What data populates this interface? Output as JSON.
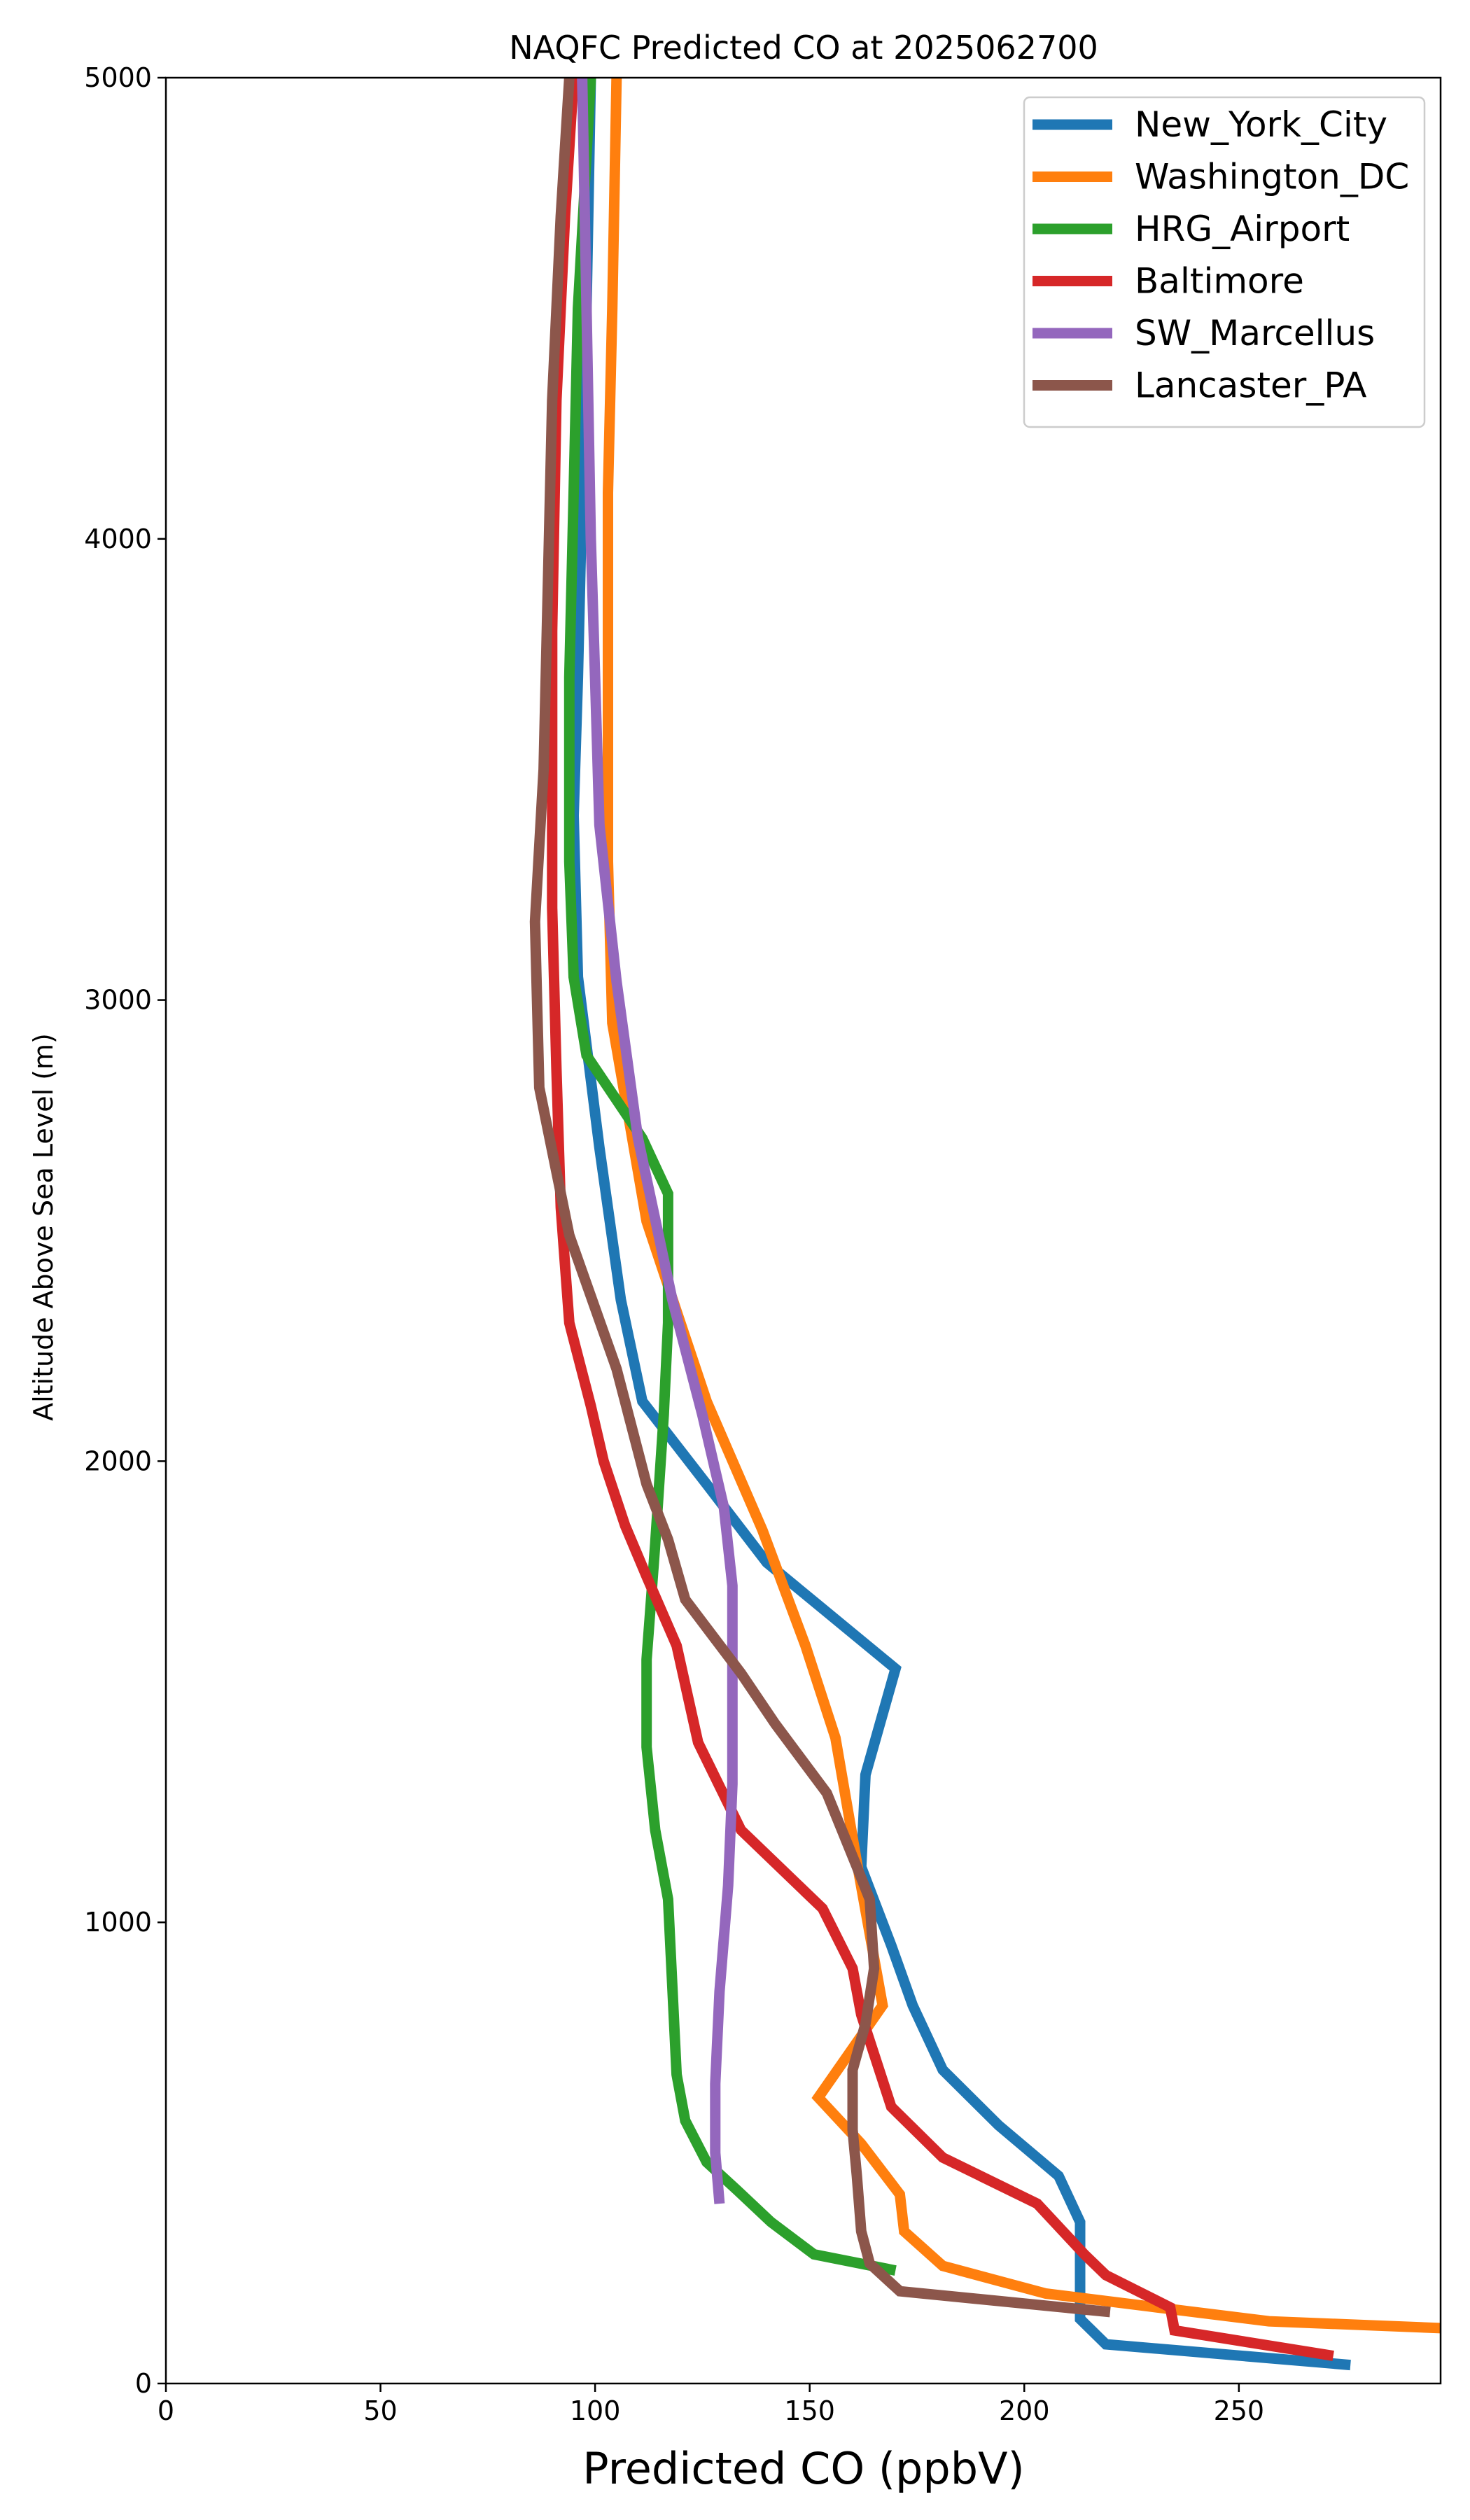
{
  "chart_data": {
    "type": "line",
    "title": "NAQFC Predicted CO at 2025062700",
    "xlabel": "Predicted CO (ppbV)",
    "ylabel": "Altitude Above Sea Level (m)",
    "xlim": [
      0,
      297
    ],
    "ylim": [
      0,
      5000
    ],
    "x_ticks": [
      "0",
      "50",
      "100",
      "150",
      "200",
      "250"
    ],
    "y_ticks": [
      "0",
      "1000",
      "2000",
      "3000",
      "4000",
      "5000"
    ],
    "legend_position": "top-right",
    "grid": false,
    "series": [
      {
        "name": "New_York_City",
        "color": "#1f77b4",
        "points": [
          [
            276,
            40
          ],
          [
            219,
            85
          ],
          [
            213,
            140
          ],
          [
            213,
            250
          ],
          [
            213,
            350
          ],
          [
            208,
            450
          ],
          [
            194,
            560
          ],
          [
            181,
            680
          ],
          [
            174,
            820
          ],
          [
            169,
            950
          ],
          [
            162,
            1120
          ],
          [
            163,
            1320
          ],
          [
            170,
            1550
          ],
          [
            140,
            1780
          ],
          [
            126,
            1950
          ],
          [
            111,
            2130
          ],
          [
            106,
            2350
          ],
          [
            101,
            2680
          ],
          [
            96,
            3050
          ],
          [
            95,
            3400
          ],
          [
            96,
            3700
          ],
          [
            97,
            4100
          ],
          [
            98,
            4500
          ],
          [
            99,
            5000
          ]
        ]
      },
      {
        "name": "Washington_DC",
        "color": "#ff7f0e",
        "points": [
          [
            297,
            120
          ],
          [
            257,
            135
          ],
          [
            205,
            195
          ],
          [
            181,
            255
          ],
          [
            172,
            330
          ],
          [
            171,
            410
          ],
          [
            162,
            520
          ],
          [
            152,
            620
          ],
          [
            167,
            820
          ],
          [
            161,
            1130
          ],
          [
            156,
            1400
          ],
          [
            149,
            1600
          ],
          [
            139,
            1850
          ],
          [
            126,
            2130
          ],
          [
            112,
            2520
          ],
          [
            104,
            2950
          ],
          [
            103,
            3300
          ],
          [
            103,
            3700
          ],
          [
            103,
            4100
          ],
          [
            104,
            4500
          ],
          [
            105,
            5000
          ]
        ]
      },
      {
        "name": "HRG_Airport",
        "color": "#2ca02c",
        "points": [
          [
            170,
            245
          ],
          [
            151,
            280
          ],
          [
            141,
            350
          ],
          [
            133,
            420
          ],
          [
            126,
            480
          ],
          [
            121,
            570
          ],
          [
            119,
            670
          ],
          [
            118,
            860
          ],
          [
            117,
            1050
          ],
          [
            114,
            1200
          ],
          [
            112,
            1380
          ],
          [
            112,
            1570
          ],
          [
            114,
            1820
          ],
          [
            116,
            2100
          ],
          [
            117,
            2300
          ],
          [
            117,
            2580
          ],
          [
            111,
            2700
          ],
          [
            98,
            2880
          ],
          [
            95,
            3050
          ],
          [
            94,
            3300
          ],
          [
            94,
            3700
          ],
          [
            95,
            4100
          ],
          [
            96,
            4500
          ],
          [
            99,
            5000
          ]
        ]
      },
      {
        "name": "Baltimore",
        "color": "#d62728",
        "points": [
          [
            272,
            60
          ],
          [
            235,
            115
          ],
          [
            234,
            165
          ],
          [
            219,
            235
          ],
          [
            214,
            280
          ],
          [
            203,
            390
          ],
          [
            181,
            490
          ],
          [
            169,
            600
          ],
          [
            162,
            800
          ],
          [
            160,
            900
          ],
          [
            153,
            1030
          ],
          [
            134,
            1200
          ],
          [
            124,
            1390
          ],
          [
            119,
            1600
          ],
          [
            112,
            1750
          ],
          [
            107,
            1860
          ],
          [
            102,
            2000
          ],
          [
            99,
            2120
          ],
          [
            94,
            2300
          ],
          [
            92,
            2550
          ],
          [
            91,
            2850
          ],
          [
            90,
            3200
          ],
          [
            90,
            3800
          ],
          [
            91,
            4300
          ],
          [
            93,
            4700
          ],
          [
            95,
            5000
          ]
        ]
      },
      {
        "name": "SW_Marcellus",
        "color": "#9467bd",
        "points": [
          [
            129,
            390
          ],
          [
            128,
            500
          ],
          [
            128,
            650
          ],
          [
            129,
            850
          ],
          [
            131,
            1080
          ],
          [
            132,
            1300
          ],
          [
            132,
            1550
          ],
          [
            132,
            1730
          ],
          [
            130,
            1900
          ],
          [
            125,
            2100
          ],
          [
            118,
            2350
          ],
          [
            110,
            2700
          ],
          [
            105,
            3040
          ],
          [
            101,
            3380
          ],
          [
            100,
            3700
          ],
          [
            99,
            4000
          ],
          [
            98,
            4500
          ],
          [
            97,
            5000
          ]
        ]
      },
      {
        "name": "Lancaster_PA",
        "color": "#8c564b",
        "points": [
          [
            220,
            155
          ],
          [
            171,
            200
          ],
          [
            164,
            260
          ],
          [
            162,
            330
          ],
          [
            161,
            450
          ],
          [
            160,
            550
          ],
          [
            160,
            680
          ],
          [
            163,
            780
          ],
          [
            165,
            900
          ],
          [
            164,
            1050
          ],
          [
            161,
            1120
          ],
          [
            154,
            1280
          ],
          [
            142,
            1430
          ],
          [
            134,
            1540
          ],
          [
            121,
            1700
          ],
          [
            117,
            1830
          ],
          [
            112,
            1950
          ],
          [
            105,
            2200
          ],
          [
            94,
            2490
          ],
          [
            87,
            2810
          ],
          [
            86,
            3170
          ],
          [
            88,
            3500
          ],
          [
            89,
            3900
          ],
          [
            90,
            4300
          ],
          [
            92,
            4700
          ],
          [
            94,
            5000
          ]
        ]
      }
    ]
  }
}
